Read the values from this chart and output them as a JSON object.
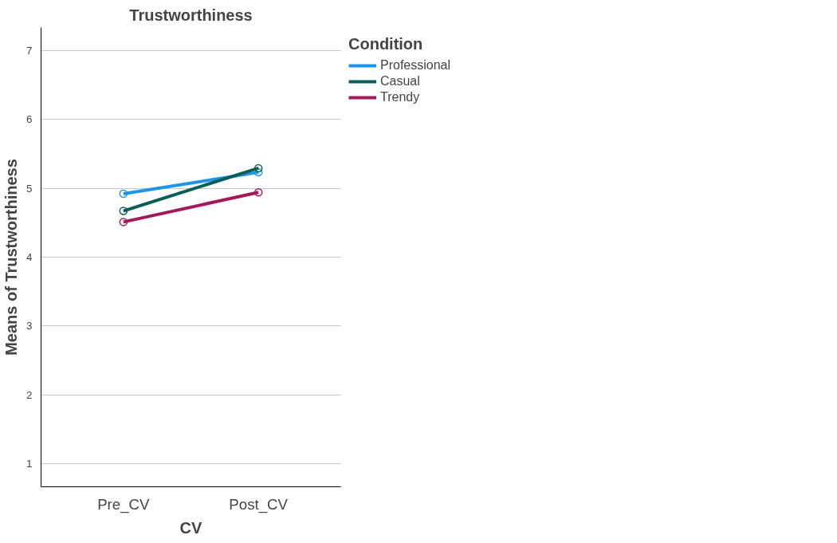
{
  "chart_data": {
    "type": "line",
    "title": "Trustworthiness",
    "xlabel": "CV",
    "ylabel": "Means of Trustworthiness",
    "legend_title": "Condition",
    "categories": [
      "Pre_CV",
      "Post_CV"
    ],
    "series": [
      {
        "name": "Professional",
        "color": "#1e96e8",
        "values": [
          4.92,
          5.23
        ]
      },
      {
        "name": "Casual",
        "color": "#0b5e58",
        "values": [
          4.67,
          5.29
        ]
      },
      {
        "name": "Trendy",
        "color": "#a3195b",
        "values": [
          4.51,
          4.94
        ]
      }
    ],
    "ylim": [
      0.67,
      7.33
    ],
    "yticks": [
      1,
      2,
      3,
      4,
      5,
      6,
      7
    ],
    "grid": "y",
    "legend": "top right",
    "marker": "circle",
    "line_style": "solid"
  }
}
